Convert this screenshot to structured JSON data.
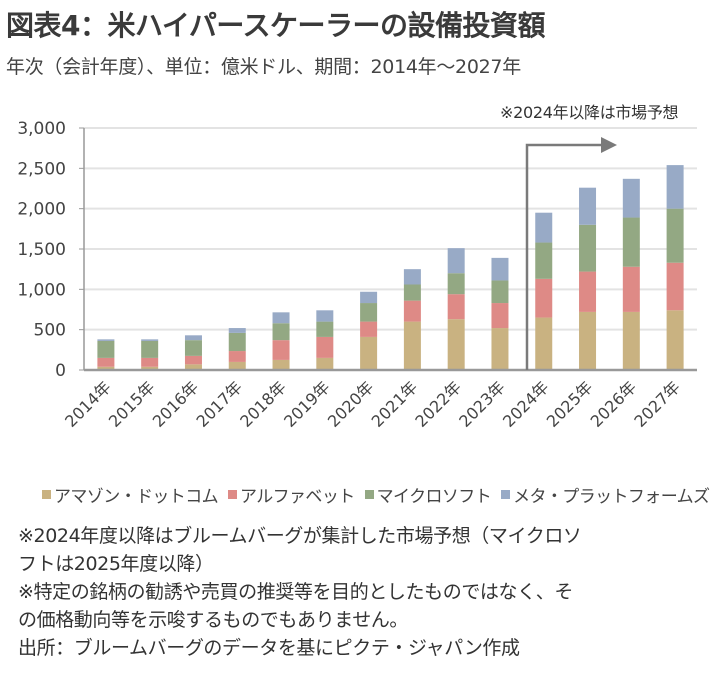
{
  "header": {
    "title": "図表4：米ハイパースケーラーの設備投資額",
    "subtitle": "年次（会計年度）、単位：億米ドル、期間：2014年～2027年"
  },
  "chart_data": {
    "type": "bar",
    "stacked": true,
    "title": "図表4：米ハイパースケーラーの設備投資額",
    "xlabel": "",
    "ylabel": "",
    "ylim": [
      0,
      3000
    ],
    "yticks": [
      0,
      500,
      1000,
      1500,
      2000,
      2500,
      3000
    ],
    "ytick_labels": [
      "0",
      "500",
      "1,000",
      "1,500",
      "2,000",
      "2,500",
      "3,000"
    ],
    "grid": true,
    "legend_position": "bottom",
    "categories": [
      "2014年",
      "2015年",
      "2016年",
      "2017年",
      "2018年",
      "2019年",
      "2020年",
      "2021年",
      "2022年",
      "2023年",
      "2024年",
      "2025年",
      "2026年",
      "2027年"
    ],
    "series": [
      {
        "name": "アマゾン・ドットコム",
        "color": "#c9b281",
        "values": [
          40,
          40,
          70,
          100,
          125,
          150,
          410,
          600,
          630,
          520,
          650,
          720,
          720,
          740
        ]
      },
      {
        "name": "アルファベット",
        "color": "#de8a86",
        "values": [
          110,
          110,
          105,
          135,
          245,
          260,
          190,
          260,
          310,
          310,
          480,
          500,
          560,
          590
        ]
      },
      {
        "name": "マイクロソフト",
        "color": "#93a883",
        "values": [
          210,
          210,
          195,
          225,
          210,
          190,
          230,
          200,
          260,
          280,
          450,
          580,
          610,
          670
        ]
      },
      {
        "name": "メタ・プラットフォームズ",
        "color": "#98aac6",
        "values": [
          20,
          20,
          60,
          60,
          135,
          140,
          140,
          190,
          310,
          280,
          370,
          460,
          480,
          540
        ]
      }
    ],
    "annotations": [
      {
        "text": "※2024年以降は市場予想",
        "from_category": "2024年"
      }
    ]
  },
  "notes": [
    "※2024年度以降はブルームバーグが集計した市場予想（マイクロソ",
    "フトは2025年度以降）",
    "※特定の銘柄の勧誘や売買の推奨等を目的としたものではなく、そ",
    "の価格動向等を示唆するものでもありません。",
    "出所：ブルームバーグのデータを基にピクテ・ジャパン作成"
  ]
}
